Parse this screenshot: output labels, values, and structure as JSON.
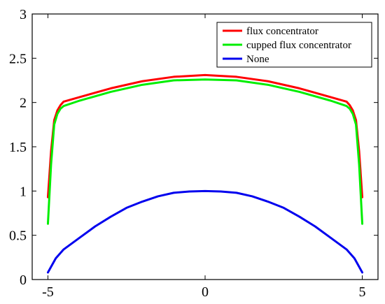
{
  "chart_data": {
    "type": "line",
    "title": "",
    "xlabel": "",
    "ylabel": "",
    "xlim": [
      -5.5,
      5.5
    ],
    "ylim": [
      0,
      3
    ],
    "xticks": [
      -5,
      0,
      5
    ],
    "xtick_labels": [
      "-5",
      "0",
      "5"
    ],
    "yticks": [
      0,
      0.5,
      1,
      1.5,
      2,
      2.5,
      3
    ],
    "ytick_labels": [
      "0",
      "0.5",
      "1",
      "1.5",
      "2",
      "2.5",
      "3"
    ],
    "grid": false,
    "legend_position": "top-right",
    "series": [
      {
        "name": "flux concentrator",
        "color": "#ff0000",
        "x": [
          -5,
          -4.9,
          -4.8,
          -4.7,
          -4.6,
          -4.5,
          -4,
          -3,
          -2,
          -1,
          0,
          1,
          2,
          3,
          4,
          4.5,
          4.6,
          4.7,
          4.8,
          4.9,
          5
        ],
        "y": [
          0.93,
          1.45,
          1.8,
          1.91,
          1.97,
          2.01,
          2.06,
          2.16,
          2.24,
          2.29,
          2.31,
          2.29,
          2.24,
          2.16,
          2.06,
          2.01,
          1.97,
          1.91,
          1.8,
          1.45,
          0.93
        ]
      },
      {
        "name": "cupped flux concentrator",
        "color": "#00ee00",
        "x": [
          -5,
          -4.9,
          -4.8,
          -4.7,
          -4.6,
          -4.5,
          -4,
          -3,
          -2,
          -1,
          0,
          1,
          2,
          3,
          4,
          4.5,
          4.6,
          4.7,
          4.8,
          4.9,
          5
        ],
        "y": [
          0.63,
          1.3,
          1.75,
          1.87,
          1.93,
          1.96,
          2.02,
          2.12,
          2.2,
          2.25,
          2.26,
          2.25,
          2.2,
          2.12,
          2.02,
          1.96,
          1.93,
          1.87,
          1.75,
          1.3,
          0.63
        ]
      },
      {
        "name": "None",
        "color": "#0000ee",
        "x": [
          -5,
          -4.75,
          -4.5,
          -4,
          -3.5,
          -3,
          -2.5,
          -2,
          -1.5,
          -1,
          -0.5,
          0,
          0.5,
          1,
          1.5,
          2,
          2.5,
          3,
          3.5,
          4,
          4.5,
          4.75,
          5
        ],
        "y": [
          0.08,
          0.24,
          0.34,
          0.47,
          0.6,
          0.71,
          0.81,
          0.88,
          0.94,
          0.98,
          0.995,
          1.0,
          0.995,
          0.98,
          0.94,
          0.88,
          0.81,
          0.71,
          0.6,
          0.47,
          0.34,
          0.24,
          0.08
        ]
      }
    ]
  }
}
